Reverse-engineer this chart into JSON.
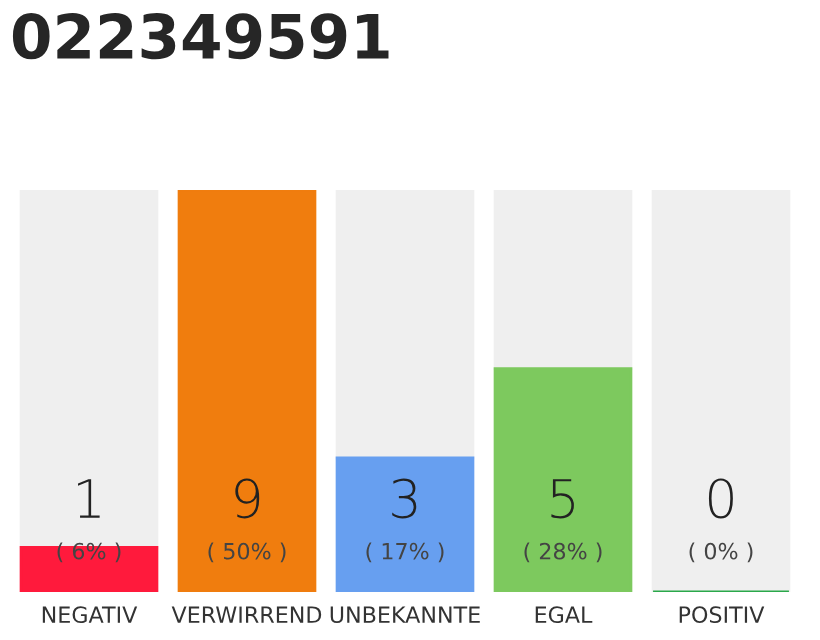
{
  "chart_data": {
    "type": "bar",
    "title": "022349591",
    "stacked": true,
    "ylim": [
      0,
      9
    ],
    "tick_labels": "x",
    "categories": [
      "NEGATIV",
      "VERWIRREND",
      "UNBEKANNTE",
      "EGAL",
      "POSITIV"
    ],
    "series": [
      {
        "colors": [
          "#ff1a3c",
          "#f07d0e",
          "#679ff0",
          "#7dc95e",
          "#2aa84a"
        ],
        "values": [
          1,
          9,
          3,
          5,
          0
        ],
        "value_labels": [
          "1",
          "9",
          "3",
          "5",
          "0"
        ]
      },
      {
        "color": "#efefef",
        "values": [
          8,
          0,
          6,
          4,
          9
        ]
      }
    ],
    "annotations": [
      {
        "text": "( 6% )",
        "x": "NEGATIV",
        "y": 0
      },
      {
        "text": "( 50% )",
        "x": "VERWIRREND",
        "y": 0
      },
      {
        "text": "( 17% )",
        "x": "UNBEKANNTE",
        "y": 0
      },
      {
        "text": "( 28% )",
        "x": "EGAL",
        "y": 0
      },
      {
        "text": "( 0% )",
        "x": "POSITIV",
        "y": 0
      }
    ]
  }
}
